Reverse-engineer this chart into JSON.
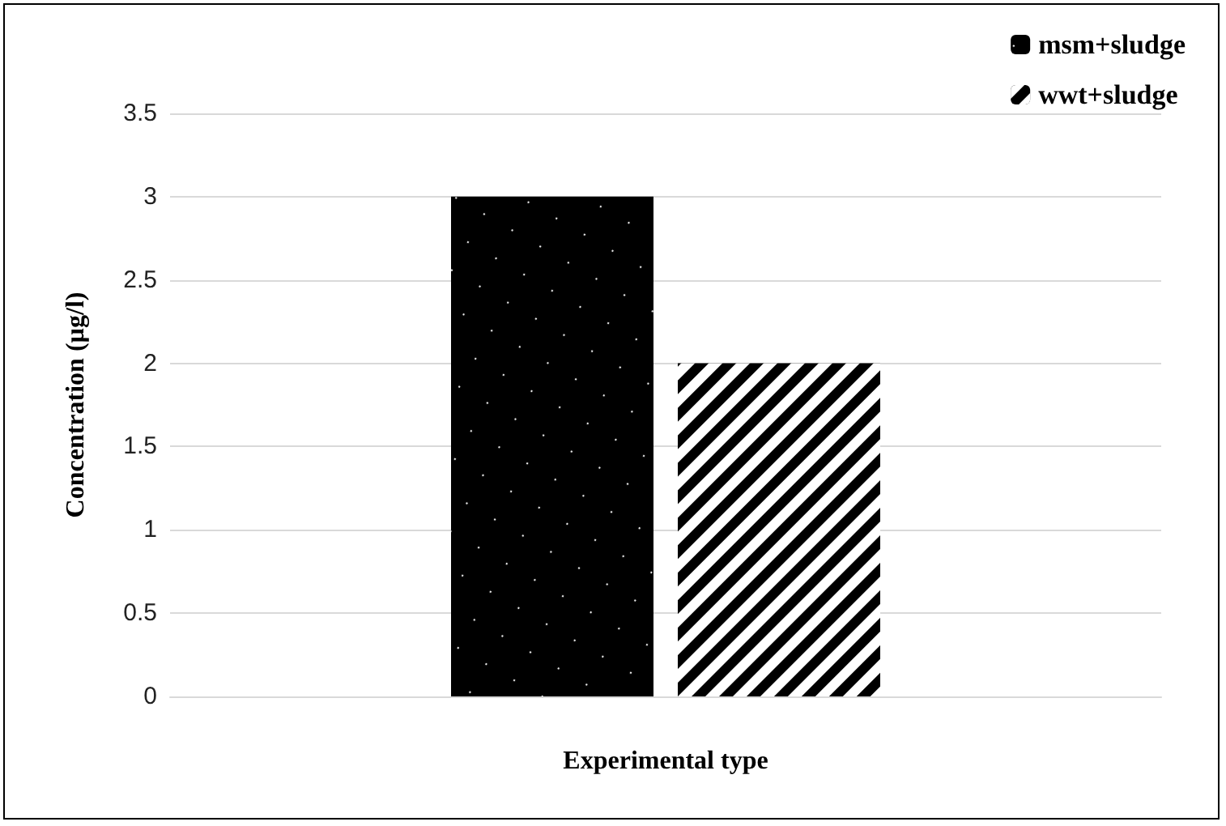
{
  "chart_data": {
    "type": "bar",
    "xlabel": "Experimental type",
    "ylabel": "Concentration (µg/l)",
    "categories": [
      null
    ],
    "series": [
      {
        "name": "msm+sludge",
        "color": "#000000",
        "values": [
          3
        ]
      },
      {
        "name": "wwt+sludge",
        "color": "#000000",
        "values": [
          2
        ]
      }
    ],
    "ylim": [
      0,
      3.5
    ],
    "yticks": [
      0,
      0.5,
      1,
      1.5,
      2,
      2.5,
      3,
      3.5
    ],
    "grid": "y",
    "legend": "top right"
  }
}
